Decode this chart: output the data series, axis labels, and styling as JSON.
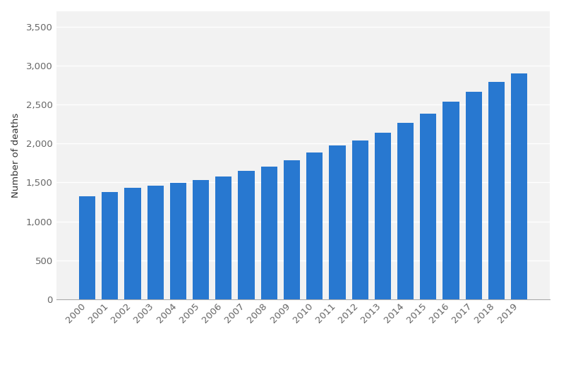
{
  "years": [
    "2000",
    "2001",
    "2002",
    "2003",
    "2004",
    "2005",
    "2006",
    "2007",
    "2008",
    "2009",
    "2010",
    "2011",
    "2012",
    "2013",
    "2014",
    "2015",
    "2016",
    "2017",
    "2018",
    "2019"
  ],
  "values": [
    1320,
    1380,
    1430,
    1460,
    1490,
    1530,
    1580,
    1650,
    1700,
    1780,
    1880,
    1970,
    2040,
    2140,
    2260,
    2380,
    2540,
    2660,
    2790,
    2900
  ],
  "bar_color": "#2878d0",
  "ylabel": "Number of deaths",
  "ylim": [
    0,
    3700
  ],
  "yticks": [
    0,
    500,
    1000,
    1500,
    2000,
    2500,
    3000,
    3500
  ],
  "ytick_labels": [
    "0",
    "500",
    "1,000",
    "1,500",
    "2,000",
    "2,500",
    "3,000",
    "3,500"
  ],
  "background_color": "#ffffff",
  "plot_bg_color": "#f2f2f2",
  "grid_color": "#ffffff",
  "axis_color": "#333333",
  "tick_color": "#666666",
  "bar_width": 0.72,
  "figsize": [
    8.03,
    5.17
  ],
  "dpi": 100
}
